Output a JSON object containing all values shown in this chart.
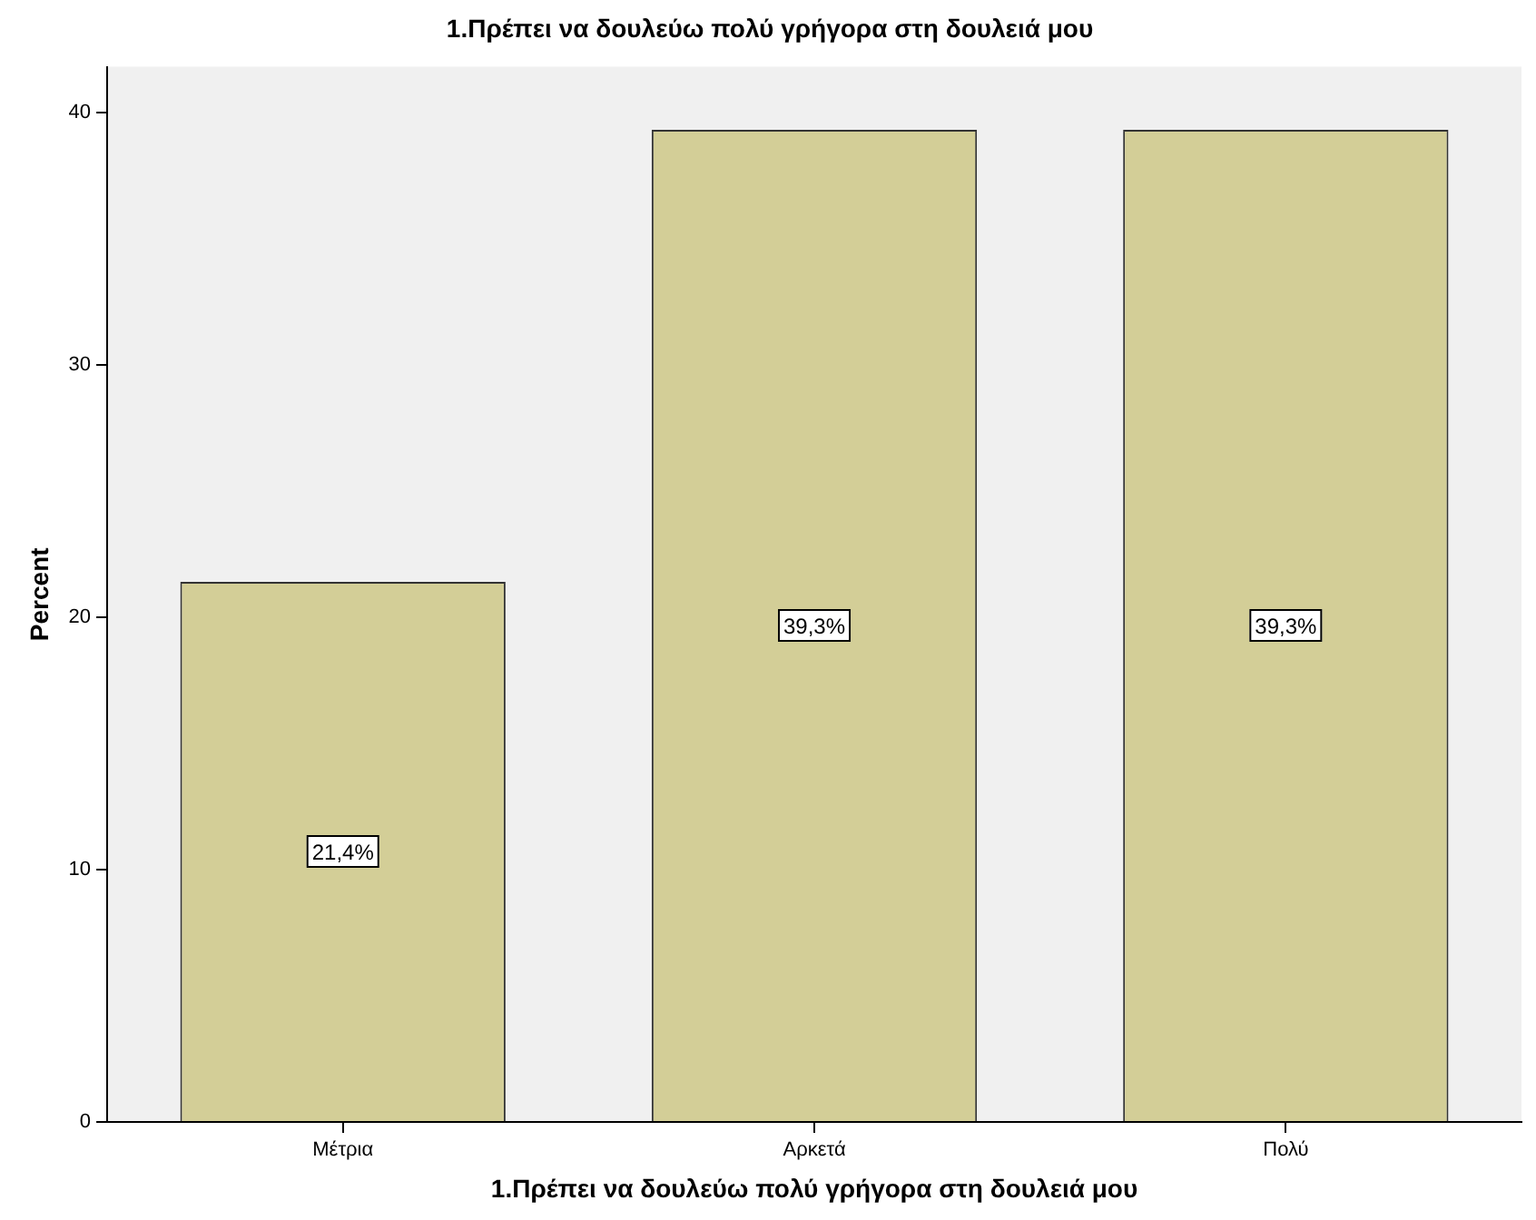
{
  "chart_data": {
    "type": "bar",
    "title": "1.Πρέπει να δουλεύω πολύ γρήγορα στη δουλειά μου",
    "xlabel": "1.Πρέπει να δουλεύω πολύ γρήγορα στη δουλειά μου",
    "ylabel": "Percent",
    "categories": [
      "Μέτρια",
      "Αρκετά",
      "Πολύ"
    ],
    "values": [
      21.4,
      39.3,
      39.3
    ],
    "value_labels": [
      "21,4%",
      "39,3%",
      "39,3%"
    ],
    "color": "#d3ce97",
    "ylim": [
      0,
      41.8
    ],
    "yticks": [
      0,
      10,
      20,
      30,
      40
    ],
    "grid": false,
    "legend": false
  }
}
